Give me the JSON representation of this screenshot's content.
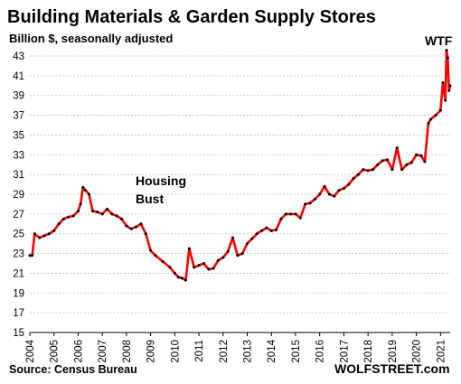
{
  "title": "Building Materials & Garden Supply Stores",
  "subtitle": "Billion $, seasonally adjusted",
  "source": "Source: Census Bureau",
  "brand": "WOLFSTREET.com",
  "annotations": {
    "housing_bust_line1": "Housing",
    "housing_bust_line2": "Bust",
    "wtf": "WTF"
  },
  "colors": {
    "line": "#ff0000",
    "markers": "#000000",
    "grid": "#bfbfbf"
  },
  "chart_data": {
    "type": "line",
    "title": "Building Materials & Garden Supply Stores",
    "subtitle": "Billion $, seasonally adjusted",
    "xlabel": "",
    "ylabel": "",
    "ylim": [
      15,
      43
    ],
    "xlim": [
      2004,
      2021.4
    ],
    "y_ticks": [
      15,
      17,
      19,
      21,
      23,
      25,
      27,
      29,
      31,
      33,
      35,
      37,
      39,
      41,
      43
    ],
    "x_ticks": [
      "2004",
      "2005",
      "2006",
      "2007",
      "2008",
      "2009",
      "2010",
      "2011",
      "2012",
      "2013",
      "2014",
      "2015",
      "2016",
      "2017",
      "2018",
      "2019",
      "2020",
      "2021"
    ],
    "grid": "horizontal",
    "series": [
      {
        "x": [
          2004.0,
          2004.1,
          2004.2,
          2004.4,
          2004.6,
          2004.8,
          2005.0,
          2005.2,
          2005.4,
          2005.6,
          2005.8,
          2006.0,
          2006.1,
          2006.2,
          2006.3,
          2006.45,
          2006.6,
          2006.8,
          2007.0,
          2007.2,
          2007.4,
          2007.6,
          2007.8,
          2008.0,
          2008.2,
          2008.4,
          2008.6,
          2008.8,
          2009.0,
          2009.2,
          2009.5,
          2009.8,
          2010.0,
          2010.15,
          2010.3,
          2010.45,
          2010.6,
          2010.8,
          2011.0,
          2011.2,
          2011.4,
          2011.6,
          2011.8,
          2012.0,
          2012.2,
          2012.4,
          2012.6,
          2012.8,
          2013.0,
          2013.2,
          2013.4,
          2013.6,
          2013.8,
          2014.0,
          2014.2,
          2014.4,
          2014.6,
          2014.8,
          2015.0,
          2015.2,
          2015.4,
          2015.6,
          2015.8,
          2016.0,
          2016.2,
          2016.4,
          2016.6,
          2016.8,
          2017.0,
          2017.2,
          2017.4,
          2017.6,
          2017.8,
          2018.0,
          2018.2,
          2018.4,
          2018.6,
          2018.8,
          2019.0,
          2019.2,
          2019.4,
          2019.6,
          2019.8,
          2020.0,
          2020.2,
          2020.35,
          2020.5,
          2020.6,
          2020.8,
          2021.0,
          2021.1,
          2021.2,
          2021.25,
          2021.3,
          2021.35,
          2021.4
        ],
        "values": [
          22.8,
          22.8,
          25.0,
          24.6,
          24.8,
          25.0,
          25.3,
          26.0,
          26.5,
          26.7,
          26.8,
          27.3,
          28.0,
          29.7,
          29.4,
          29.0,
          27.3,
          27.2,
          27.0,
          27.5,
          27.0,
          26.8,
          26.5,
          25.8,
          25.5,
          25.7,
          26.0,
          25.0,
          23.3,
          22.8,
          22.2,
          21.6,
          21.0,
          20.6,
          20.5,
          20.3,
          23.5,
          21.6,
          21.8,
          22.0,
          21.4,
          21.5,
          22.3,
          22.6,
          23.2,
          24.6,
          22.8,
          23.0,
          24.0,
          24.5,
          25.0,
          25.3,
          25.6,
          25.3,
          25.4,
          26.5,
          27.0,
          27.0,
          27.0,
          26.6,
          28.0,
          28.1,
          28.5,
          29.0,
          29.8,
          29.0,
          28.8,
          29.4,
          29.6,
          30.0,
          30.6,
          31.0,
          31.5,
          31.4,
          31.5,
          32.0,
          32.4,
          32.5,
          31.5,
          33.7,
          31.5,
          32.0,
          32.2,
          33.0,
          32.9,
          32.3,
          36.2,
          36.6,
          37.0,
          37.5,
          40.3,
          38.5,
          43.6,
          42.8,
          39.5,
          40.0
        ]
      }
    ]
  }
}
